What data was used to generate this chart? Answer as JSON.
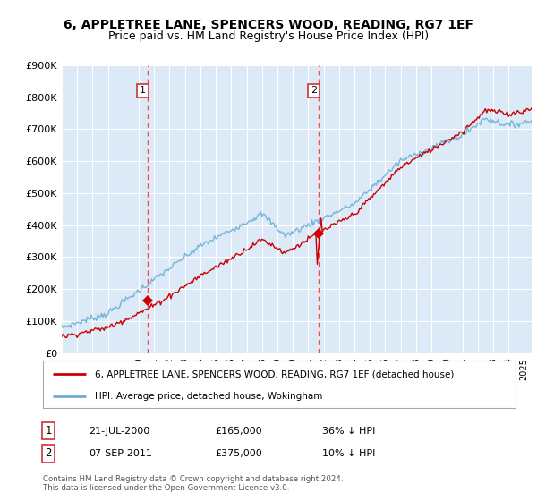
{
  "title": "6, APPLETREE LANE, SPENCERS WOOD, READING, RG7 1EF",
  "subtitle": "Price paid vs. HM Land Registry's House Price Index (HPI)",
  "title_fontsize": 10,
  "subtitle_fontsize": 9,
  "background_color": "#ffffff",
  "plot_bg_color": "#dce9f7",
  "grid_color": "#ffffff",
  "ylabel_ticks": [
    "£0",
    "£100K",
    "£200K",
    "£300K",
    "£400K",
    "£500K",
    "£600K",
    "£700K",
    "£800K",
    "£900K"
  ],
  "ytick_values": [
    0,
    100000,
    200000,
    300000,
    400000,
    500000,
    600000,
    700000,
    800000,
    900000
  ],
  "ylim": [
    0,
    900000
  ],
  "xlim_start": 1995.0,
  "xlim_end": 2025.5,
  "red_line_color": "#cc0000",
  "blue_line_color": "#6baed6",
  "red_line_label": "6, APPLETREE LANE, SPENCERS WOOD, READING, RG7 1EF (detached house)",
  "blue_line_label": "HPI: Average price, detached house, Wokingham",
  "sale1_x": 2000.55,
  "sale1_y": 165000,
  "sale2_x": 2011.67,
  "sale2_y": 375000,
  "vline1_x": 2000.55,
  "vline2_x": 2011.67,
  "annotation_1_date": "21-JUL-2000",
  "annotation_1_price": "£165,000",
  "annotation_1_hpi": "36% ↓ HPI",
  "annotation_2_date": "07-SEP-2011",
  "annotation_2_price": "£375,000",
  "annotation_2_hpi": "10% ↓ HPI",
  "footnote": "Contains HM Land Registry data © Crown copyright and database right 2024.\nThis data is licensed under the Open Government Licence v3.0.",
  "xtick_years": [
    1995,
    1996,
    1997,
    1998,
    1999,
    2000,
    2001,
    2002,
    2003,
    2004,
    2005,
    2006,
    2007,
    2008,
    2009,
    2010,
    2011,
    2012,
    2013,
    2014,
    2015,
    2016,
    2017,
    2018,
    2019,
    2020,
    2021,
    2022,
    2023,
    2024,
    2025
  ]
}
